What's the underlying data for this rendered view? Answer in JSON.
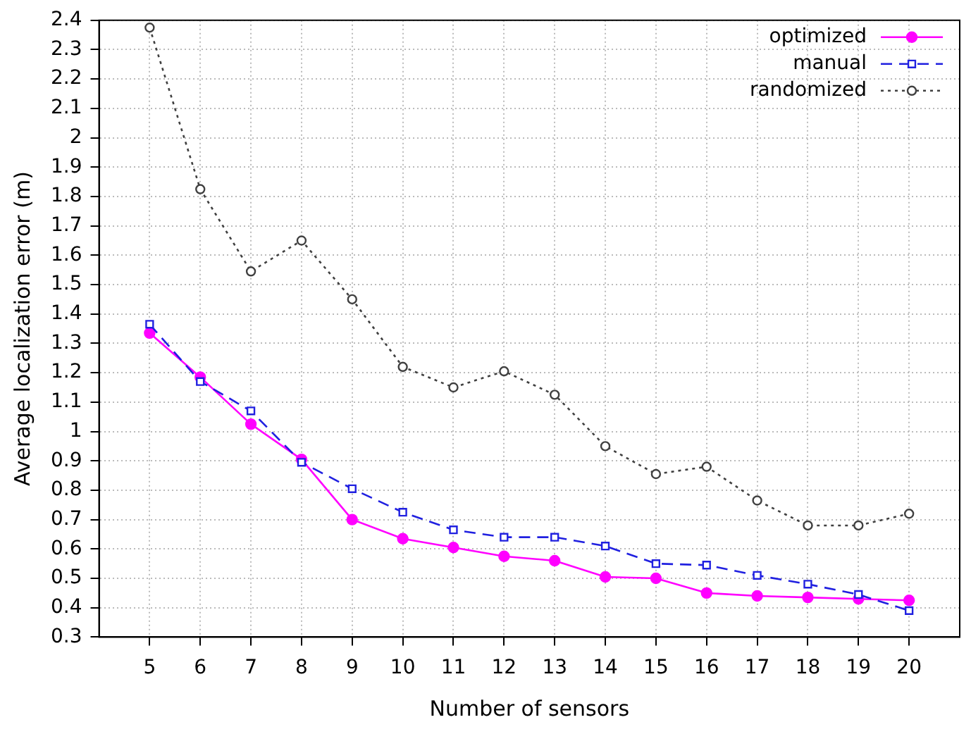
{
  "chart_data": {
    "type": "line",
    "xlabel": "Number of sensors",
    "ylabel": "Average localization error (m)",
    "x": [
      5,
      6,
      7,
      8,
      9,
      10,
      11,
      12,
      13,
      14,
      15,
      16,
      17,
      18,
      19,
      20
    ],
    "series": [
      {
        "name": "optimized",
        "color": "#ff00ff",
        "marker": "circle",
        "line_style": "solid",
        "values": [
          1.335,
          1.185,
          1.025,
          0.905,
          0.7,
          0.635,
          0.605,
          0.575,
          0.56,
          0.505,
          0.5,
          0.45,
          0.44,
          0.435,
          0.43,
          0.425
        ]
      },
      {
        "name": "manual",
        "color": "#2020e0",
        "marker": "square",
        "line_style": "dashed",
        "values": [
          1.365,
          1.17,
          1.07,
          0.895,
          0.805,
          0.725,
          0.665,
          0.64,
          0.64,
          0.61,
          0.55,
          0.545,
          0.51,
          0.48,
          0.445,
          0.39
        ]
      },
      {
        "name": "randomized",
        "color": "#404040",
        "marker": "circle",
        "line_style": "dotted",
        "values": [
          2.375,
          1.825,
          1.545,
          1.65,
          1.45,
          1.22,
          1.15,
          1.205,
          1.125,
          0.95,
          0.855,
          0.88,
          0.765,
          0.68,
          0.68,
          0.72
        ]
      }
    ],
    "xlim": [
      4,
      21
    ],
    "xticks": [
      5,
      6,
      7,
      8,
      9,
      10,
      11,
      12,
      13,
      14,
      15,
      16,
      17,
      18,
      19,
      20
    ],
    "ylim": [
      0.3,
      2.4
    ],
    "yticks": [
      0.3,
      0.4,
      0.5,
      0.6,
      0.7,
      0.8,
      0.9,
      1,
      1.1,
      1.2,
      1.3,
      1.4,
      1.5,
      1.6,
      1.7,
      1.8,
      1.9,
      2,
      2.1,
      2.2,
      2.3,
      2.4
    ],
    "grid": true,
    "legend": "top right"
  }
}
